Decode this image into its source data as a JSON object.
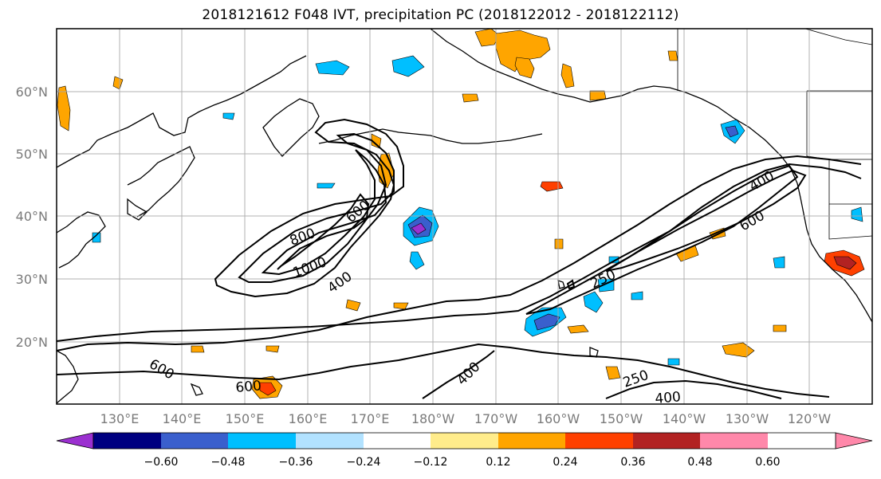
{
  "title": "2018121612 F048 IVT, precipitation PC (2018122012 - 2018122112)",
  "lon_labels": [
    "130°E",
    "140°E",
    "150°E",
    "160°E",
    "170°E",
    "180°W",
    "170°W",
    "160°W",
    "150°W",
    "140°W",
    "130°W",
    "120°W"
  ],
  "lat_labels": [
    "60°N",
    "50°N",
    "40°N",
    "30°N",
    "20°N"
  ],
  "colorbar": {
    "colors": [
      "#9b30d0",
      "#000080",
      "#3a5fcd",
      "#00bfff",
      "#b2e2ff",
      "#ffffff",
      "#ffec8b",
      "#ffa500",
      "#ff4000",
      "#b22222",
      "#ff88aa"
    ],
    "tick_labels": [
      "−0.60",
      "−0.48",
      "−0.36",
      "−0.24",
      "−0.12",
      "0.12",
      "0.24",
      "0.36",
      "0.48",
      "0.60"
    ],
    "extend": "both"
  },
  "contour_labels": [
    "800",
    "1000",
    "600",
    "400",
    "400",
    "600",
    "250",
    "600",
    "600",
    "400",
    "250",
    "400"
  ],
  "colors": {
    "coastline": "#000000",
    "grid": "#a9a9a9",
    "contour": "#000000"
  }
}
